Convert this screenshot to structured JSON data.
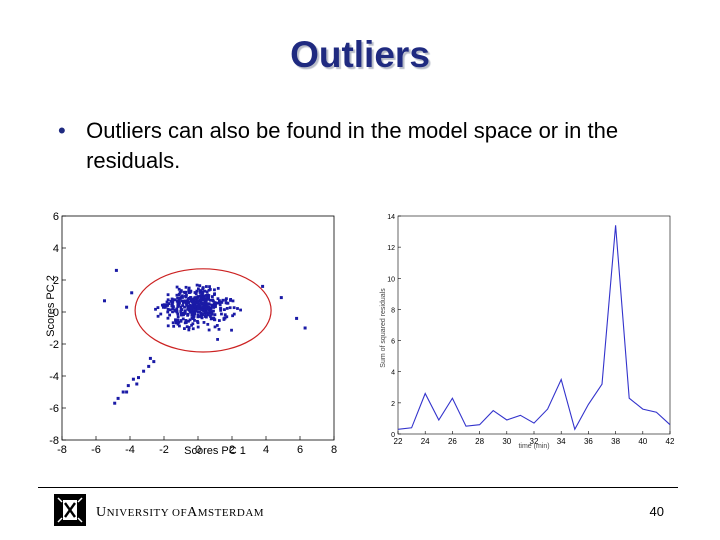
{
  "slide": {
    "title": "Outliers",
    "bullet_symbol": "•",
    "bullet_text": "Outliers can also be found in the model space or in the residuals.",
    "footer_university_small_caps": "UNIVERSITY OF AMSTERDAM",
    "page_number": "40"
  },
  "colors": {
    "title": "#1f2a80",
    "scatter_points": "#1a1aa6",
    "ellipse": "#cc2222",
    "line": "#3333cc"
  },
  "chart_data": [
    {
      "type": "scatter",
      "title": "",
      "xlabel": "Scores PC 1",
      "ylabel": "Scores PC 2",
      "xlim": [
        -8,
        8
      ],
      "ylim": [
        -8,
        6
      ],
      "x_ticks": [
        "-8",
        "-6",
        "-4",
        "-2",
        "0",
        "2",
        "4",
        "6",
        "8"
      ],
      "y_ticks": [
        "6",
        "4",
        "2",
        "0",
        "-2",
        "-4",
        "-6",
        "-8"
      ],
      "ellipse": {
        "center": [
          0.3,
          0.1
        ],
        "rx": 4.0,
        "ry": 2.6
      },
      "outlier_trail": [
        [
          -3.8,
          -4.2
        ],
        [
          -4.1,
          -4.6
        ],
        [
          -4.4,
          -5.0
        ],
        [
          -4.7,
          -5.4
        ],
        [
          -4.2,
          -5.0
        ],
        [
          -3.5,
          -4.1
        ],
        [
          -3.2,
          -3.7
        ],
        [
          -2.9,
          -3.4
        ],
        [
          -2.6,
          -3.1
        ],
        [
          -2.8,
          -2.9
        ],
        [
          -4.9,
          -5.7
        ],
        [
          -3.6,
          -4.5
        ]
      ],
      "extra_points": [
        [
          -4.8,
          2.6
        ],
        [
          -5.5,
          0.7
        ],
        [
          -4.2,
          0.3
        ],
        [
          3.8,
          1.6
        ],
        [
          6.3,
          -1.0
        ],
        [
          5.8,
          -0.4
        ],
        [
          4.9,
          0.9
        ],
        [
          -3.9,
          1.2
        ]
      ]
    },
    {
      "type": "line",
      "title": "",
      "xlabel": "time (min)",
      "ylabel": "Sum of squared residuals",
      "xlim": [
        22,
        42
      ],
      "ylim": [
        0,
        14
      ],
      "x_ticks": [
        "22",
        "24",
        "26",
        "28",
        "30",
        "32",
        "34",
        "36",
        "38",
        "40",
        "42"
      ],
      "y_ticks": [
        "0",
        "2",
        "4",
        "6",
        "8",
        "10",
        "12",
        "14"
      ],
      "series": [
        {
          "x": [
            22,
            23,
            24,
            25,
            26,
            27,
            28,
            29,
            30,
            31,
            32,
            33,
            34,
            35,
            36,
            37,
            38,
            39,
            40,
            41,
            42
          ],
          "values": [
            0.3,
            0.4,
            2.6,
            0.9,
            2.3,
            0.5,
            0.6,
            1.5,
            0.9,
            1.2,
            0.7,
            1.6,
            3.5,
            0.3,
            1.9,
            3.2,
            13.4,
            2.3,
            1.6,
            1.4,
            0.6
          ]
        }
      ]
    }
  ]
}
